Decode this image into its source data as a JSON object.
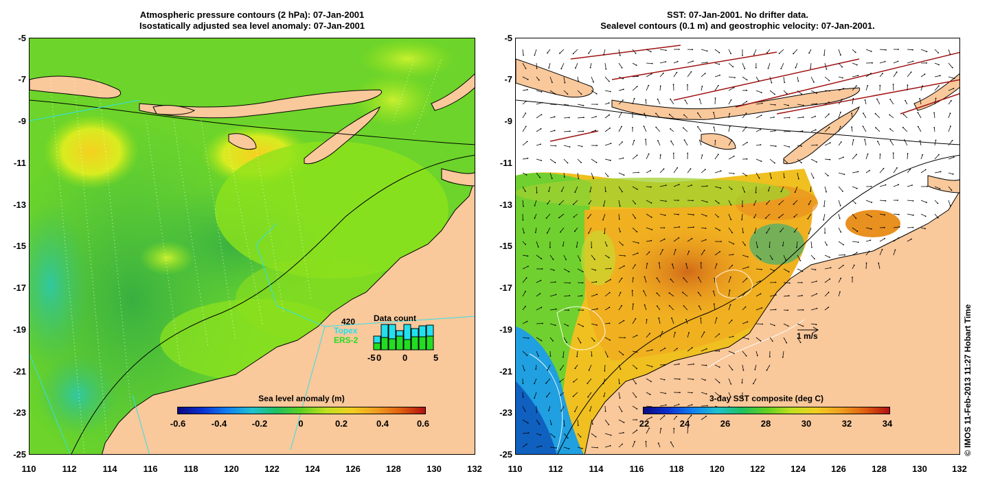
{
  "left_panel": {
    "title_line1": "Atmospheric pressure contours (2 hPa): 07-Jan-2001",
    "title_line2": "Isostatically adjusted sea level anomaly: 07-Jan-2001",
    "y_ticks": [
      "-5",
      "-7",
      "-9",
      "-11",
      "-13",
      "-15",
      "-17",
      "-19",
      "-21",
      "-23",
      "-25"
    ],
    "x_ticks": [
      "110",
      "112",
      "114",
      "116",
      "118",
      "120",
      "122",
      "124",
      "126",
      "128",
      "130",
      "132"
    ],
    "colorbar": {
      "label": "Sea level anomaly (m)",
      "ticks": [
        "-0.6",
        "-0.4",
        "-0.2",
        "0",
        "0.2",
        "0.4",
        "0.6"
      ]
    },
    "inset": {
      "count": "420",
      "topex_label": "Topex",
      "ers2_label": "ERS-2",
      "title": "Data count",
      "x_ticks": [
        "-5",
        "0",
        "0",
        "5"
      ],
      "topex_color": "#22e0ee",
      "ers2_color": "#22dd22"
    }
  },
  "right_panel": {
    "title_line1": "SST: 07-Jan-2001. No drifter data.",
    "title_line2": "Sealevel contours (0.1 m) and geostrophic velocity: 07-Jan-2001.",
    "y_ticks": [
      "-5",
      "-7",
      "-9",
      "-11",
      "-13",
      "-15",
      "-17",
      "-19",
      "-21",
      "-23",
      "-25"
    ],
    "x_ticks": [
      "110",
      "112",
      "114",
      "116",
      "118",
      "120",
      "122",
      "124",
      "126",
      "128",
      "130",
      "132"
    ],
    "colorbar": {
      "label": "3-day SST composite (deg C)",
      "ticks": [
        "22",
        "24",
        "26",
        "28",
        "30",
        "32",
        "34"
      ]
    },
    "velocity_scale": "1 m/s"
  },
  "credit": "© IMOS 11-Feb-2013 11:27 Hobart Time",
  "colors": {
    "land": "#f9c89b",
    "ocean_green": "#7fe01a",
    "sst_orange": "#f0a020",
    "sst_blue": "#2080e0"
  }
}
